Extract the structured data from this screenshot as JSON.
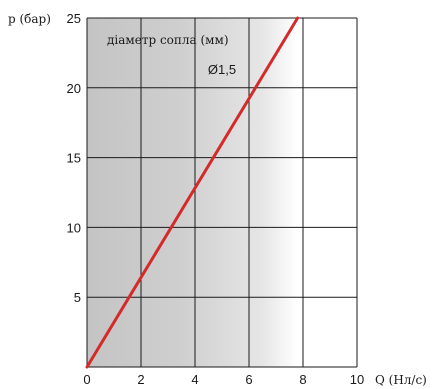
{
  "chart_data": {
    "type": "line",
    "title": "",
    "annotation": "діаметр сопла (мм)",
    "xlabel": "Q (Нл/с)",
    "ylabel": "p (бар)",
    "xlim": [
      0,
      10
    ],
    "ylim": [
      0,
      25
    ],
    "xticks": [
      0,
      2,
      4,
      6,
      8,
      10
    ],
    "yticks": [
      5,
      10,
      15,
      20,
      25
    ],
    "grid": true,
    "series": [
      {
        "name": "Ø1,5",
        "color": "#d42a2a",
        "x": [
          0,
          7.8
        ],
        "y": [
          0,
          25
        ]
      }
    ]
  }
}
